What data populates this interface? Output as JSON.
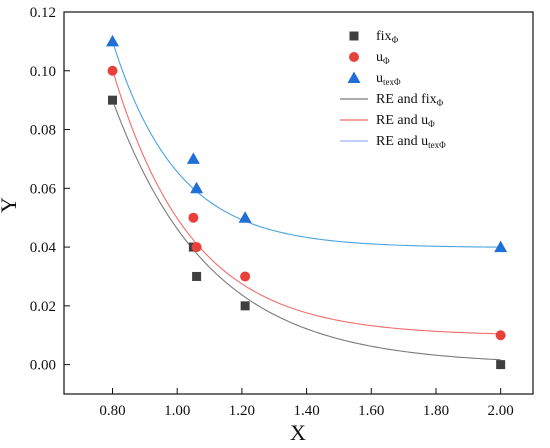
{
  "chart_data": {
    "type": "scatter",
    "title": "",
    "xlabel": "X",
    "ylabel": "Y",
    "xlim": [
      0.65,
      2.1
    ],
    "ylim": [
      -0.01,
      0.12
    ],
    "grid": false,
    "legend_position": "top-right",
    "x_ticks": [
      0.8,
      1.0,
      1.2,
      1.4,
      1.6,
      1.8,
      2.0
    ],
    "x_tick_labels": [
      "0.80",
      "1.00",
      "1.20",
      "1.40",
      "1.60",
      "1.80",
      "2.00"
    ],
    "y_ticks": [
      0.0,
      0.02,
      0.04,
      0.06,
      0.08,
      0.1,
      0.12
    ],
    "y_tick_labels": [
      "0.00",
      "0.02",
      "0.04",
      "0.06",
      "0.08",
      "0.10",
      "0.12"
    ],
    "series": [
      {
        "name": "fixΦ",
        "name_base": "fix",
        "name_sub": "Φ",
        "marker": "square",
        "color": "#404040",
        "points": [
          [
            0.8,
            0.09
          ],
          [
            1.05,
            0.04
          ],
          [
            1.06,
            0.03
          ],
          [
            1.21,
            0.02
          ],
          [
            2.0,
            0.0
          ]
        ]
      },
      {
        "name": "uΦ",
        "name_base": "u",
        "name_sub": "Φ",
        "marker": "circle",
        "color": "#e8413c",
        "points": [
          [
            0.8,
            0.1
          ],
          [
            1.05,
            0.05
          ],
          [
            1.06,
            0.04
          ],
          [
            1.21,
            0.03
          ],
          [
            2.0,
            0.01
          ]
        ]
      },
      {
        "name": "utexΦ",
        "name_base": "u",
        "name_sub": "texΦ",
        "marker": "triangle",
        "color": "#1f6fd6",
        "points": [
          [
            0.8,
            0.11
          ],
          [
            1.05,
            0.07
          ],
          [
            1.06,
            0.06
          ],
          [
            1.21,
            0.05
          ],
          [
            2.0,
            0.04
          ]
        ]
      }
    ],
    "fits": [
      {
        "name": "RE and fixΦ",
        "name_base": "RE and fix",
        "name_sub": "Φ",
        "color": "#7a7a7a",
        "model": "exp_decay",
        "y0": 0.0,
        "A": 0.09,
        "x0": 0.8,
        "t": 0.3
      },
      {
        "name": "RE and uΦ",
        "name_base": "RE and u",
        "name_sub": "Φ",
        "color": "#f26b6b",
        "model": "exp_decay",
        "y0": 0.0098,
        "A": 0.0905,
        "x0": 0.8,
        "t": 0.245
      },
      {
        "name": "RE and utexΦ",
        "name_base": "RE and u",
        "name_sub": "texΦ",
        "color": "#9fb2ff",
        "line_color_override": "#4aa3e0",
        "model": "exp_decay",
        "y0": 0.0398,
        "A": 0.0702,
        "x0": 0.8,
        "t": 0.2
      }
    ]
  }
}
